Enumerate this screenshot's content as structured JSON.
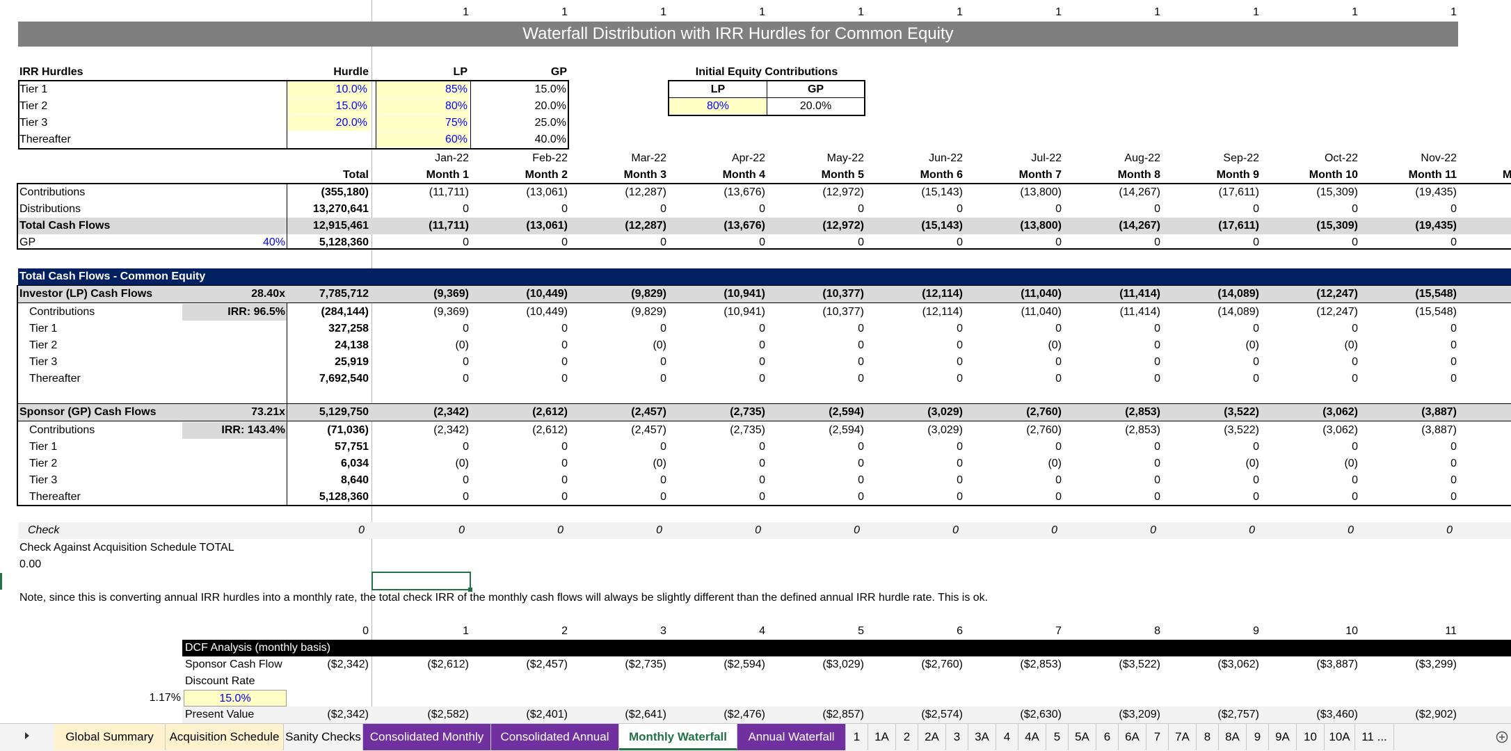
{
  "cols": [
    {
      "one": "1",
      "month": "Jan-22",
      "label": "Month 1",
      "contrib": "(11,711)",
      "distr": "0",
      "tcf": "(11,711)",
      "gp": "0",
      "lp": "(9,369)",
      "lpc": "(9,369)",
      "lt1": "0",
      "lt2": "(0)",
      "lt3": "0",
      "lth": "0",
      "sp": "(2,342)",
      "spc": "(2,342)",
      "st1": "0",
      "st2": "(0)",
      "st3": "0",
      "sth": "0",
      "chk": "0",
      "dcf_n": "1",
      "dcf_scf": "($2,612)",
      "dcf_pv": "($2,582)"
    },
    {
      "one": "1",
      "month": "Feb-22",
      "label": "Month 2",
      "contrib": "(13,061)",
      "distr": "0",
      "tcf": "(13,061)",
      "gp": "0",
      "lp": "(10,449)",
      "lpc": "(10,449)",
      "lt1": "0",
      "lt2": "0",
      "lt3": "0",
      "lth": "0",
      "sp": "(2,612)",
      "spc": "(2,612)",
      "st1": "0",
      "st2": "0",
      "st3": "0",
      "sth": "0",
      "chk": "0",
      "dcf_n": "2",
      "dcf_scf": "($2,457)",
      "dcf_pv": "($2,401)"
    },
    {
      "one": "1",
      "month": "Mar-22",
      "label": "Month 3",
      "contrib": "(12,287)",
      "distr": "0",
      "tcf": "(12,287)",
      "gp": "0",
      "lp": "(9,829)",
      "lpc": "(9,829)",
      "lt1": "0",
      "lt2": "(0)",
      "lt3": "0",
      "lth": "0",
      "sp": "(2,457)",
      "spc": "(2,457)",
      "st1": "0",
      "st2": "(0)",
      "st3": "0",
      "sth": "0",
      "chk": "0",
      "dcf_n": "3",
      "dcf_scf": "($2,735)",
      "dcf_pv": "($2,641)"
    },
    {
      "one": "1",
      "month": "Apr-22",
      "label": "Month 4",
      "contrib": "(13,676)",
      "distr": "0",
      "tcf": "(13,676)",
      "gp": "0",
      "lp": "(10,941)",
      "lpc": "(10,941)",
      "lt1": "0",
      "lt2": "0",
      "lt3": "0",
      "lth": "0",
      "sp": "(2,735)",
      "spc": "(2,735)",
      "st1": "0",
      "st2": "0",
      "st3": "0",
      "sth": "0",
      "chk": "0",
      "dcf_n": "4",
      "dcf_scf": "($2,594)",
      "dcf_pv": "($2,476)"
    },
    {
      "one": "1",
      "month": "May-22",
      "label": "Month 5",
      "contrib": "(12,972)",
      "distr": "0",
      "tcf": "(12,972)",
      "gp": "0",
      "lp": "(10,377)",
      "lpc": "(10,377)",
      "lt1": "0",
      "lt2": "0",
      "lt3": "0",
      "lth": "0",
      "sp": "(2,594)",
      "spc": "(2,594)",
      "st1": "0",
      "st2": "0",
      "st3": "0",
      "sth": "0",
      "chk": "0",
      "dcf_n": "5",
      "dcf_scf": "($3,029)",
      "dcf_pv": "($2,857)"
    },
    {
      "one": "1",
      "month": "Jun-22",
      "label": "Month 6",
      "contrib": "(15,143)",
      "distr": "0",
      "tcf": "(15,143)",
      "gp": "0",
      "lp": "(12,114)",
      "lpc": "(12,114)",
      "lt1": "0",
      "lt2": "0",
      "lt3": "0",
      "lth": "0",
      "sp": "(3,029)",
      "spc": "(3,029)",
      "st1": "0",
      "st2": "0",
      "st3": "0",
      "sth": "0",
      "chk": "0",
      "dcf_n": "6",
      "dcf_scf": "($2,760)",
      "dcf_pv": "($2,574)"
    },
    {
      "one": "1",
      "month": "Jul-22",
      "label": "Month 7",
      "contrib": "(13,800)",
      "distr": "0",
      "tcf": "(13,800)",
      "gp": "0",
      "lp": "(11,040)",
      "lpc": "(11,040)",
      "lt1": "0",
      "lt2": "(0)",
      "lt3": "0",
      "lth": "0",
      "sp": "(2,760)",
      "spc": "(2,760)",
      "st1": "0",
      "st2": "(0)",
      "st3": "0",
      "sth": "0",
      "chk": "0",
      "dcf_n": "7",
      "dcf_scf": "($2,853)",
      "dcf_pv": "($2,630)"
    },
    {
      "one": "1",
      "month": "Aug-22",
      "label": "Month 8",
      "contrib": "(14,267)",
      "distr": "0",
      "tcf": "(14,267)",
      "gp": "0",
      "lp": "(11,414)",
      "lpc": "(11,414)",
      "lt1": "0",
      "lt2": "0",
      "lt3": "0",
      "lth": "0",
      "sp": "(2,853)",
      "spc": "(2,853)",
      "st1": "0",
      "st2": "0",
      "st3": "0",
      "sth": "0",
      "chk": "0",
      "dcf_n": "8",
      "dcf_scf": "($3,522)",
      "dcf_pv": "($3,209)"
    },
    {
      "one": "1",
      "month": "Sep-22",
      "label": "Month 9",
      "contrib": "(17,611)",
      "distr": "0",
      "tcf": "(17,611)",
      "gp": "0",
      "lp": "(14,089)",
      "lpc": "(14,089)",
      "lt1": "0",
      "lt2": "(0)",
      "lt3": "0",
      "lth": "0",
      "sp": "(3,522)",
      "spc": "(3,522)",
      "st1": "0",
      "st2": "(0)",
      "st3": "0",
      "sth": "0",
      "chk": "0",
      "dcf_n": "9",
      "dcf_scf": "($3,062)",
      "dcf_pv": "($2,757)"
    },
    {
      "one": "1",
      "month": "Oct-22",
      "label": "Month 10",
      "contrib": "(15,309)",
      "distr": "0",
      "tcf": "(15,309)",
      "gp": "0",
      "lp": "(12,247)",
      "lpc": "(12,247)",
      "lt1": "0",
      "lt2": "(0)",
      "lt3": "0",
      "lth": "0",
      "sp": "(3,062)",
      "spc": "(3,062)",
      "st1": "0",
      "st2": "(0)",
      "st3": "0",
      "sth": "0",
      "chk": "0",
      "dcf_n": "10",
      "dcf_scf": "($3,887)",
      "dcf_pv": "($3,460)"
    },
    {
      "one": "1",
      "month": "Nov-22",
      "label": "Month 11",
      "contrib": "(19,435)",
      "distr": "0",
      "tcf": "(19,435)",
      "gp": "0",
      "lp": "(15,548)",
      "lpc": "(15,548)",
      "lt1": "0",
      "lt2": "0",
      "lt3": "0",
      "lth": "0",
      "sp": "(3,887)",
      "spc": "(3,887)",
      "st1": "0",
      "st2": "0",
      "st3": "0",
      "sth": "0",
      "chk": "0",
      "dcf_n": "11",
      "dcf_scf": "($3,299)",
      "dcf_pv": "($2,902)"
    }
  ],
  "partial_col_label": "M",
  "title": "Waterfall Distribution with IRR Hurdles for Common Equity",
  "hurdles": {
    "header": "IRR Hurdles",
    "col_hurdle": "Hurdle",
    "col_lp": "LP",
    "col_gp": "GP",
    "rows": [
      {
        "name": "Tier 1",
        "hurdle": "10.0%",
        "lp": "85%",
        "gp": "15.0%"
      },
      {
        "name": "Tier 2",
        "hurdle": "15.0%",
        "lp": "80%",
        "gp": "20.0%"
      },
      {
        "name": "Tier 3",
        "hurdle": "20.0%",
        "lp": "75%",
        "gp": "25.0%"
      },
      {
        "name": "Thereafter",
        "hurdle": "",
        "lp": "60%",
        "gp": "40.0%"
      }
    ]
  },
  "initial_equity": {
    "header": "Initial Equity Contributions",
    "col_lp": "LP",
    "col_gp": "GP",
    "lp": "80%",
    "gp": "20.0%"
  },
  "summary": {
    "total_header": "Total",
    "contributions_label": "Contributions",
    "contributions_total": "(355,180)",
    "distributions_label": "Distributions",
    "distributions_total": "13,270,641",
    "tcf_label": "Total Cash Flows",
    "tcf_total": "12,915,461",
    "gp_label": "GP",
    "gp_pct": "40%",
    "gp_total": "5,128,360"
  },
  "common": {
    "header": "Total Cash Flows - Common Equity",
    "lp_label": "Investor (LP) Cash Flows",
    "lp_multiple": "28.40x",
    "lp_total": "7,785,712",
    "lp_irr": "IRR: 96.5%",
    "lp_rows": [
      {
        "label": "Contributions",
        "total": "(284,144)"
      },
      {
        "label": "Tier 1",
        "total": "327,258"
      },
      {
        "label": "Tier 2",
        "total": "24,138"
      },
      {
        "label": "Tier 3",
        "total": "25,919"
      },
      {
        "label": "Thereafter",
        "total": "7,692,540"
      }
    ],
    "sp_label": "Sponsor (GP) Cash Flows",
    "sp_multiple": "73.21x",
    "sp_total": "5,129,750",
    "sp_irr": "IRR: 143.4%",
    "sp_rows": [
      {
        "label": "Contributions",
        "total": "(71,036)"
      },
      {
        "label": "Tier 1",
        "total": "57,751"
      },
      {
        "label": "Tier 2",
        "total": "6,034"
      },
      {
        "label": "Tier 3",
        "total": "8,640"
      },
      {
        "label": "Thereafter",
        "total": "5,128,360"
      }
    ]
  },
  "check": {
    "label": "Check",
    "total": "0",
    "against_label": "Check Against Acquisition Schedule TOTAL",
    "against_value": "0.00"
  },
  "note": "Note, since this is converting annual IRR hurdles into a monthly rate, the total check IRR of the monthly cash flows will always be slightly different than the defined annual IRR hurdle rate. This is ok.",
  "dcf": {
    "n0": "0",
    "header": "DCF Analysis (monthly basis)",
    "scf_label": "Sponsor Cash Flow",
    "scf0": "($2,342)",
    "dr_label": "Discount Rate",
    "monthly_rate": "1.17%",
    "dr_value": "15.0%",
    "pv_label": "Present Value",
    "pv0": "($2,342)"
  },
  "tabs": [
    {
      "label": "Global Summary",
      "style": "y"
    },
    {
      "label": "Acquisition Schedule",
      "style": "y"
    },
    {
      "label": "Sanity Checks",
      "style": ""
    },
    {
      "label": "Consolidated Monthly",
      "style": "p"
    },
    {
      "label": "Consolidated Annual",
      "style": "p"
    },
    {
      "label": "Monthly Waterfall",
      "style": "act"
    },
    {
      "label": "Annual Waterfall",
      "style": "p"
    },
    {
      "label": "1",
      "style": ""
    },
    {
      "label": "1A",
      "style": ""
    },
    {
      "label": "2",
      "style": ""
    },
    {
      "label": "2A",
      "style": ""
    },
    {
      "label": "3",
      "style": ""
    },
    {
      "label": "3A",
      "style": ""
    },
    {
      "label": "4",
      "style": ""
    },
    {
      "label": "4A",
      "style": ""
    },
    {
      "label": "5",
      "style": ""
    },
    {
      "label": "5A",
      "style": ""
    },
    {
      "label": "6",
      "style": ""
    },
    {
      "label": "6A",
      "style": ""
    },
    {
      "label": "7",
      "style": ""
    },
    {
      "label": "7A",
      "style": ""
    },
    {
      "label": "8",
      "style": ""
    },
    {
      "label": "8A",
      "style": ""
    },
    {
      "label": "9",
      "style": ""
    },
    {
      "label": "9A",
      "style": ""
    },
    {
      "label": "10",
      "style": ""
    },
    {
      "label": "10A",
      "style": ""
    },
    {
      "label": "11 ...",
      "style": ""
    }
  ],
  "icons": {
    "scroll_next": "triangle-right-icon",
    "add_sheet": "plus-circle-icon"
  },
  "colors": {
    "banner": "#7f7f7f",
    "navy": "#002060",
    "input_yellow": "#ffffc6",
    "input_blue": "#0000ff",
    "active_tab": "#217346",
    "tab_purple": "#7030a0",
    "tab_yellow": "#fff2cc"
  }
}
